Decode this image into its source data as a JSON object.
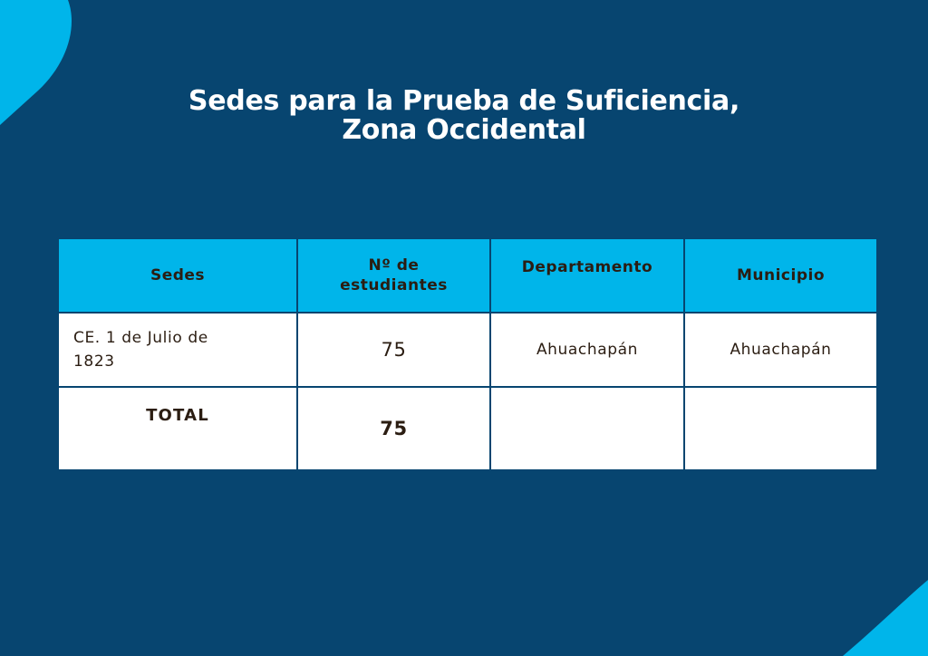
{
  "page": {
    "title_line1": "Sedes para la Prueba de Suficiencia,",
    "title_line2": "Zona Occidental"
  },
  "colors": {
    "background": "#074570",
    "accent": "#00b5ea",
    "cell": "#ffffff",
    "text_dark": "#2b1d12"
  },
  "table": {
    "headers": [
      "Sedes",
      "Nº de estudiantes",
      "Departamento",
      "Municipio"
    ],
    "rows": [
      {
        "sede": "CE. 1 de Julio de 1823",
        "estudiantes": "75",
        "departamento": "Ahuachapán",
        "municipio": "Ahuachapán"
      }
    ],
    "total": {
      "label": "TOTAL",
      "estudiantes": "75",
      "departamento": "",
      "municipio": ""
    }
  }
}
